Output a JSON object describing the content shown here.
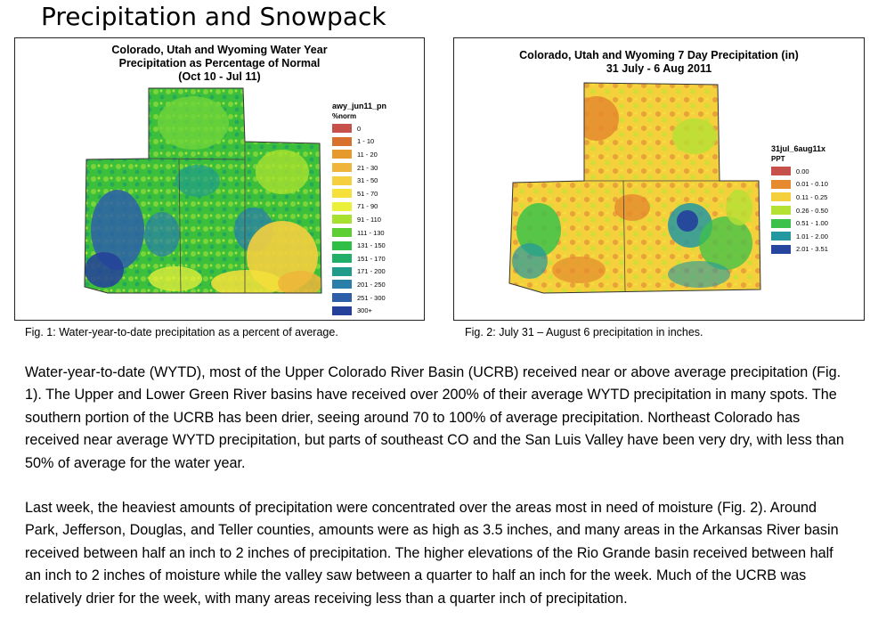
{
  "page": {
    "title": "Precipitation and Snowpack"
  },
  "figure1": {
    "title": "Colorado, Utah and Wyoming Water Year\nPrecipitation as Percentage of Normal\n(Oct 10 - Jul 11)",
    "legend_title": "awy_jun11_pn",
    "legend_subtitle": "%norm",
    "legend": [
      {
        "label": "0",
        "color": "#c8504a"
      },
      {
        "label": "1 - 10",
        "color": "#d8702e"
      },
      {
        "label": "11 - 20",
        "color": "#e69a2c"
      },
      {
        "label": "21 - 30",
        "color": "#efb53a"
      },
      {
        "label": "31 - 50",
        "color": "#f4cf3e"
      },
      {
        "label": "51 - 70",
        "color": "#f5e13a"
      },
      {
        "label": "71 - 90",
        "color": "#eaf03a"
      },
      {
        "label": "91 - 110",
        "color": "#a8e030"
      },
      {
        "label": "111 - 130",
        "color": "#5ccf34"
      },
      {
        "label": "131 - 150",
        "color": "#2fbf46"
      },
      {
        "label": "151 - 170",
        "color": "#20ae68"
      },
      {
        "label": "171 - 200",
        "color": "#1f9c8a"
      },
      {
        "label": "201 - 250",
        "color": "#2a7fa8"
      },
      {
        "label": "251 - 300",
        "color": "#2c5fa8"
      },
      {
        "label": "300+",
        "color": "#24409a"
      }
    ],
    "caption": "Fig. 1: Water-year-to-date precipitation as a percent of average."
  },
  "figure2": {
    "title": "Colorado, Utah and Wyoming 7 Day Precipitation (in)\n31 July - 6 Aug 2011",
    "legend_title": "31jul_6aug11x",
    "legend_subtitle": "PPT",
    "legend": [
      {
        "label": "0.00",
        "color": "#c8504a"
      },
      {
        "label": "0.01 - 0.10",
        "color": "#e58a2e"
      },
      {
        "label": "0.11 - 0.25",
        "color": "#f3d03c"
      },
      {
        "label": "0.26 - 0.50",
        "color": "#b5e034"
      },
      {
        "label": "0.51 - 1.00",
        "color": "#3cc24a"
      },
      {
        "label": "1.01 - 2.00",
        "color": "#2498a0"
      },
      {
        "label": "2.01 - 3.51",
        "color": "#26459c"
      }
    ],
    "caption": "Fig. 2:  July 31 – August 6 precipitation in inches."
  },
  "paragraphs": [
    "Water-year-to-date (WYTD), most of the Upper Colorado River Basin (UCRB) received near or above average precipitation (Fig. 1).  The Upper and Lower Green River basins have received over 200% of their average WYTD precipitation in many spots.  The southern portion of the UCRB has been drier, seeing around 70 to 100% of average precipitation.  Northeast Colorado has received near average WYTD precipitation, but parts of southeast CO and the San Luis Valley have been very dry, with less than 50% of average for the water year.",
    "Last week, the heaviest amounts of precipitation were concentrated over the areas most in need of moisture (Fig. 2).  Around Park, Jefferson, Douglas, and Teller counties, amounts were as high as 3.5 inches, and many areas in the Arkansas River basin received between half an inch to 2 inches of precipitation.  The higher elevations of the Rio Grande basin received between half an inch to 2 inches of moisture while the valley saw between a quarter to half an inch for the week.  Much of the UCRB was relatively drier for the week, with many areas receiving less than a quarter inch of precipitation."
  ]
}
